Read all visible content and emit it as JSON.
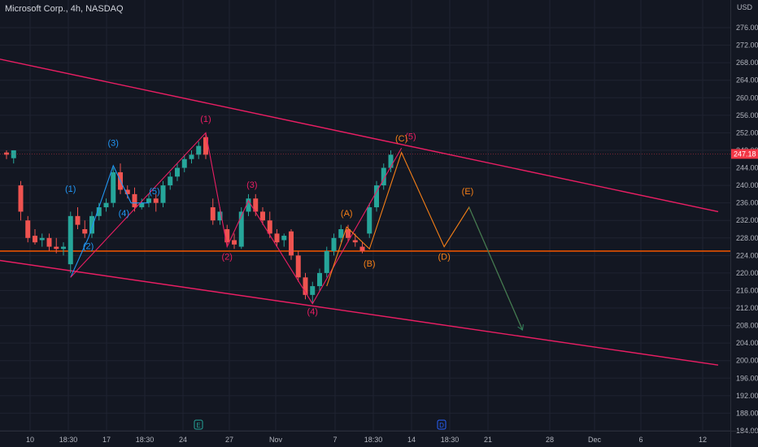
{
  "header": {
    "symbol": "Microsoft Corp.",
    "interval": "4h",
    "exchange": "NASDAQ"
  },
  "chart_data": {
    "type": "candlestick",
    "currency": "USD",
    "ylim": [
      184,
      280
    ],
    "y_ticks": [
      184,
      188,
      192,
      196,
      200,
      204,
      208,
      212,
      216,
      220,
      224,
      228,
      232,
      236,
      240,
      244,
      248,
      252,
      256,
      260,
      264,
      268,
      272,
      276
    ],
    "x_ticks": [
      "10",
      "18:30",
      "17",
      "18:30",
      "24",
      "27",
      "Nov",
      "7",
      "18:30",
      "14",
      "18:30",
      "21",
      "28",
      "Dec",
      "6",
      "12"
    ],
    "last_price": "247.18",
    "last_price_value": 247.18,
    "time_markers": [
      "E",
      "D"
    ],
    "colors": {
      "background": "#131722",
      "up": "#26a69a",
      "down": "#ef5350",
      "channel": "#e91e63",
      "support": "#e65100",
      "wave_a": "#2196f3",
      "wave_b": "#e91e63",
      "wave_c": "#f57f17",
      "arrow": "#2e7d5a"
    },
    "candles": [
      [
        247.5,
        248.0,
        246.0,
        247.0
      ],
      [
        246.2,
        248.0,
        245.0,
        248.0
      ],
      [
        240.0,
        241.0,
        232.0,
        234.0
      ],
      [
        232.0,
        233.0,
        227.0,
        228.0
      ],
      [
        228.5,
        230.0,
        226.5,
        227.0
      ],
      [
        227.5,
        229.0,
        226.0,
        228.0
      ],
      [
        228.0,
        229.0,
        225.0,
        226.0
      ],
      [
        226.0,
        228.0,
        224.5,
        225.5
      ],
      [
        225.5,
        227.0,
        224.0,
        226.0
      ],
      [
        222.0,
        234.0,
        220.0,
        233.0
      ],
      [
        233.0,
        235.0,
        230.0,
        231.0
      ],
      [
        230.0,
        232.0,
        228.0,
        229.0
      ],
      [
        229.0,
        234.0,
        228.0,
        233.0
      ],
      [
        233.0,
        236.0,
        232.0,
        235.0
      ],
      [
        235.0,
        237.0,
        234.0,
        236.0
      ],
      [
        236.0,
        244.0,
        235.0,
        243.0
      ],
      [
        243.0,
        245.0,
        238.0,
        239.0
      ],
      [
        239.0,
        240.0,
        237.0,
        238.0
      ],
      [
        238.0,
        239.5,
        234.0,
        235.0
      ],
      [
        235.0,
        237.0,
        234.5,
        236.0
      ],
      [
        236.0,
        238.0,
        235.0,
        237.0
      ],
      [
        237.0,
        238.0,
        234.0,
        236.0
      ],
      [
        236.0,
        241.0,
        235.0,
        240.0
      ],
      [
        240.0,
        243.0,
        239.0,
        242.0
      ],
      [
        242.0,
        245.0,
        241.0,
        244.0
      ],
      [
        244.0,
        247.0,
        243.0,
        246.0
      ],
      [
        246.0,
        248.0,
        245.0,
        247.0
      ],
      [
        247.0,
        250.0,
        246.0,
        249.0
      ],
      [
        251.0,
        252.0,
        246.0,
        247.0
      ],
      [
        235.0,
        237.0,
        231.0,
        232.0
      ],
      [
        232.0,
        235.0,
        231.0,
        234.0
      ],
      [
        230.0,
        231.0,
        226.0,
        227.0
      ],
      [
        227.5,
        229.0,
        225.5,
        226.5
      ],
      [
        226.0,
        235.0,
        225.5,
        234.0
      ],
      [
        234.0,
        238.0,
        233.0,
        237.0
      ],
      [
        237.0,
        238.0,
        233.0,
        234.0
      ],
      [
        234.0,
        235.0,
        231.0,
        232.0
      ],
      [
        232.0,
        234.0,
        228.0,
        229.0
      ],
      [
        229.0,
        230.0,
        226.0,
        227.0
      ],
      [
        227.5,
        229.0,
        226.0,
        228.5
      ],
      [
        229.5,
        230.0,
        223.0,
        224.0
      ],
      [
        224.0,
        225.0,
        218.0,
        219.0
      ],
      [
        219.0,
        220.0,
        214.0,
        215.0
      ],
      [
        215.0,
        218.0,
        213.0,
        217.0
      ],
      [
        217.0,
        221.0,
        216.0,
        220.0
      ],
      [
        220.0,
        226.0,
        219.0,
        225.0
      ],
      [
        225.0,
        229.0,
        224.0,
        228.0
      ],
      [
        228.0,
        231.0,
        227.0,
        230.0
      ],
      [
        230.0,
        231.0,
        227.0,
        228.0
      ],
      [
        227.5,
        229.0,
        226.0,
        227.0
      ],
      [
        226.0,
        227.0,
        224.5,
        225.0
      ],
      [
        229.0,
        236.0,
        228.0,
        235.0
      ],
      [
        235.0,
        241.0,
        234.0,
        240.0
      ],
      [
        240.0,
        245.0,
        239.0,
        244.0
      ],
      [
        244.0,
        248.0,
        243.0,
        247.0
      ]
    ],
    "waves": [
      {
        "color_key": "wave_a",
        "points": [
          [
            9,
            219
          ],
          [
            11.5,
            228
          ],
          [
            15,
            244.5
          ],
          [
            17.5,
            236
          ],
          [
            20,
            236
          ]
        ],
        "labels": [
          {
            "text": "(1)",
            "i": 9,
            "v": 238.5
          },
          {
            "text": "(2)",
            "i": 11.5,
            "v": 225.5
          },
          {
            "text": "(3)",
            "i": 15,
            "v": 249
          },
          {
            "text": "(4)",
            "i": 16.5,
            "v": 233
          },
          {
            "text": "(5)",
            "i": 20.8,
            "v": 238
          }
        ]
      },
      {
        "color_key": "wave_b",
        "points": [
          [
            9,
            219
          ],
          [
            28,
            252
          ],
          [
            31,
            226
          ],
          [
            34,
            236.5
          ],
          [
            43,
            213
          ],
          [
            55.5,
            248.5
          ]
        ],
        "labels": [
          {
            "text": "(1)",
            "i": 28,
            "v": 254.5
          },
          {
            "text": "(2)",
            "i": 31,
            "v": 223
          },
          {
            "text": "(3)",
            "i": 34.5,
            "v": 239.5
          },
          {
            "text": "(4)",
            "i": 43,
            "v": 210.5
          },
          {
            "text": "(5)",
            "i": 56.8,
            "v": 250.5
          }
        ]
      },
      {
        "color_key": "wave_c",
        "points": [
          [
            45,
            217
          ],
          [
            47.8,
            230.5
          ],
          [
            51,
            225.5
          ],
          [
            55.5,
            247.5
          ],
          [
            61.5,
            226
          ],
          [
            65,
            235
          ],
          [
            72.5,
            207
          ]
        ],
        "labels": [
          {
            "text": "(A)",
            "i": 47.8,
            "v": 233
          },
          {
            "text": "(B)",
            "i": 51,
            "v": 221.5
          },
          {
            "text": "(C)",
            "i": 55.5,
            "v": 250
          },
          {
            "text": "(D)",
            "i": 61.5,
            "v": 223
          },
          {
            "text": "(E)",
            "i": 64.8,
            "v": 238
          }
        ]
      }
    ],
    "channel_lines": [
      {
        "from": [
          -1.5,
          269
        ],
        "to": [
          100,
          234
        ]
      },
      {
        "from": [
          -1.5,
          223
        ],
        "to": [
          100,
          199
        ]
      }
    ],
    "support_line": 225,
    "projection_arrow": {
      "from": [
        65,
        235
      ],
      "to": [
        72.5,
        207
      ]
    }
  }
}
